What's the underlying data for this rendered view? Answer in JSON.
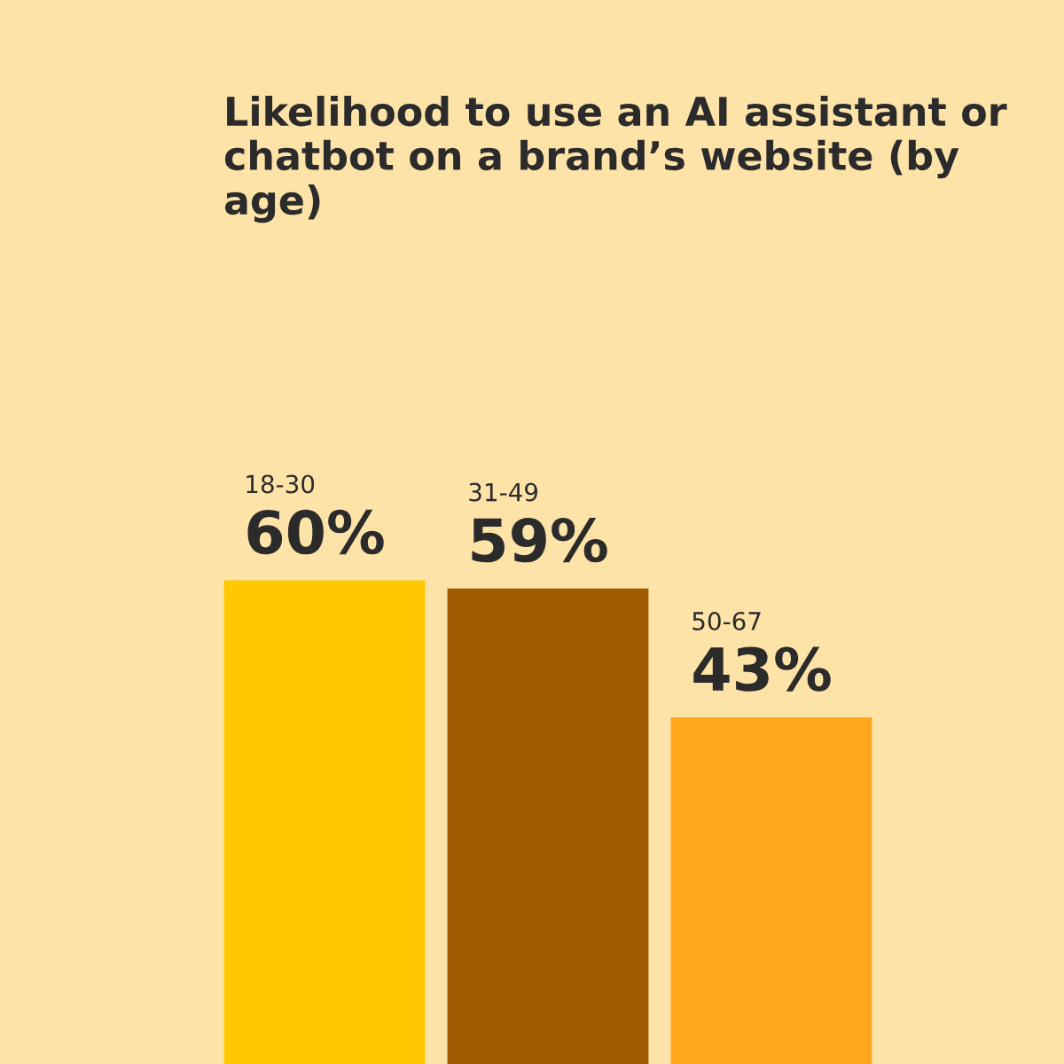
{
  "chart_data": {
    "type": "bar",
    "title": "Likelihood to use an AI assistant or chatbot on a brand’s website (by age)",
    "categories": [
      null,
      null,
      null
    ],
    "values": [
      60,
      59,
      43
    ],
    "colors": [
      "#ffc800",
      "#a05a00",
      "#ffa81e"
    ],
    "value_labels": [
      "60%",
      "59%",
      "43%"
    ],
    "annotations": [
      "18-30",
      "31-49",
      "50-67"
    ]
  }
}
